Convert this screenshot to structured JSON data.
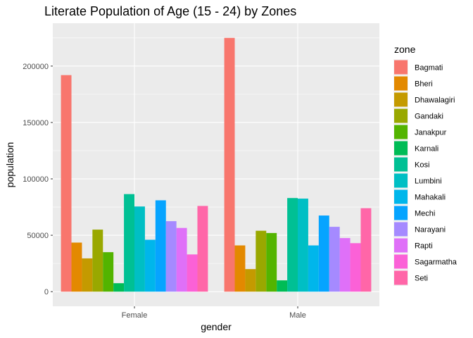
{
  "chart_data": {
    "type": "bar",
    "title": "Literate Population of Age (15 - 24) by Zones",
    "xlabel": "gender",
    "ylabel": "population",
    "categories": [
      "Female",
      "Male"
    ],
    "ylim": [
      -13000,
      238000
    ],
    "yticks": [
      0,
      50000,
      100000,
      150000,
      200000
    ],
    "ytick_labels": [
      "0",
      "50000",
      "100000",
      "150000",
      "200000"
    ],
    "grid": true,
    "legend": {
      "title": "zone",
      "position": "right"
    },
    "series": [
      {
        "name": "Bagmati",
        "color": "#F8766D",
        "values": [
          192000,
          225000
        ]
      },
      {
        "name": "Bheri",
        "color": "#E38900",
        "values": [
          43500,
          41000
        ]
      },
      {
        "name": "Dhawalagiri",
        "color": "#C49A00",
        "values": [
          29500,
          20000
        ]
      },
      {
        "name": "Gandaki",
        "color": "#99A800",
        "values": [
          55000,
          54000
        ]
      },
      {
        "name": "Janakpur",
        "color": "#53B400",
        "values": [
          35000,
          52000
        ]
      },
      {
        "name": "Karnali",
        "color": "#00BC56",
        "values": [
          7500,
          10000
        ]
      },
      {
        "name": "Kosi",
        "color": "#00C094",
        "values": [
          86500,
          83000
        ]
      },
      {
        "name": "Lumbini",
        "color": "#00BFC4",
        "values": [
          75500,
          82500
        ]
      },
      {
        "name": "Mahakali",
        "color": "#00B6EB",
        "values": [
          46000,
          41000
        ]
      },
      {
        "name": "Mechi",
        "color": "#06A4FF",
        "values": [
          81000,
          67500
        ]
      },
      {
        "name": "Narayani",
        "color": "#A58AFF",
        "values": [
          62500,
          57500
        ]
      },
      {
        "name": "Rapti",
        "color": "#DF70F8",
        "values": [
          56500,
          47500
        ]
      },
      {
        "name": "Sagarmatha",
        "color": "#FB61D7",
        "values": [
          33000,
          43000
        ]
      },
      {
        "name": "Seti",
        "color": "#FF66A8",
        "values": [
          76000,
          74000
        ]
      }
    ]
  }
}
